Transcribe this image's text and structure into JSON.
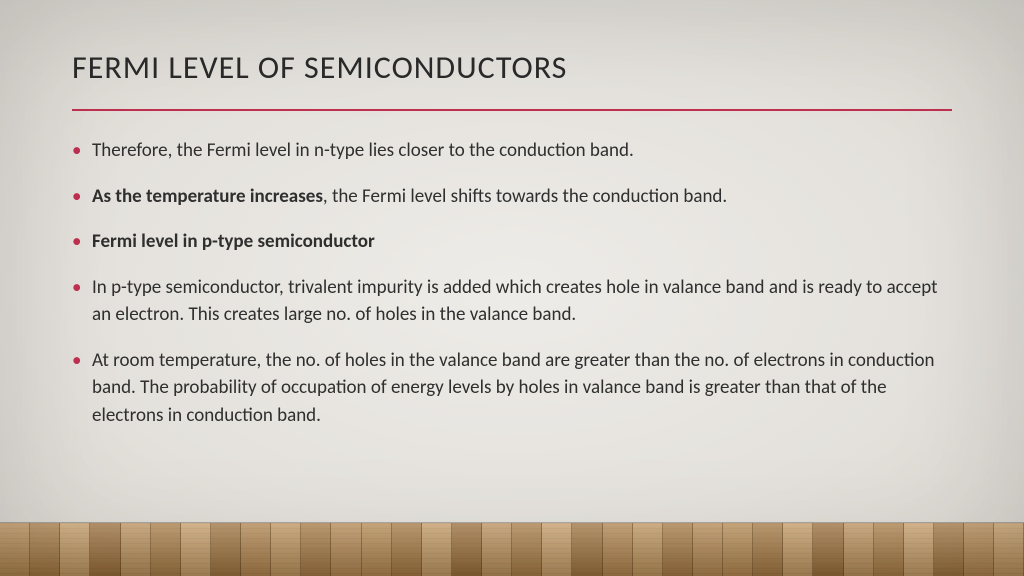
{
  "title": "FERMI LEVEL OF SEMICONDUCTORS",
  "divider_color": "#c03050",
  "bullet_color": "#c03050",
  "bullets": [
    {
      "runs": [
        {
          "text": "Therefore, the Fermi level in n-type lies closer to the conduction band.",
          "bold": false
        }
      ]
    },
    {
      "runs": [
        {
          "text": "As the temperature increases",
          "bold": true
        },
        {
          "text": ", the Fermi level shifts towards the conduction band.",
          "bold": false
        }
      ]
    },
    {
      "runs": [
        {
          "text": "Fermi level in p-type semiconductor",
          "bold": true
        }
      ]
    },
    {
      "runs": [
        {
          "text": "In p-type semiconductor, trivalent impurity is added which creates hole in valance band and is ready to accept an electron. This creates large no. of holes in the valance band.",
          "bold": false
        }
      ]
    },
    {
      "runs": [
        {
          "text": "At room temperature, the no. of holes in the valance band are greater than the no. of electrons in conduction band. The probability of occupation of energy levels by holes in valance band is greater than that of the electrons in conduction band.",
          "bold": false
        }
      ]
    }
  ],
  "floor": {
    "plank_count": 34,
    "colors": [
      "#b98c53",
      "#a97c44",
      "#c79d66",
      "#9e713c",
      "#bf945e",
      "#ad8049",
      "#caa06a",
      "#a37741",
      "#b58750",
      "#c2975f",
      "#aa7d46",
      "#b88b54"
    ]
  }
}
